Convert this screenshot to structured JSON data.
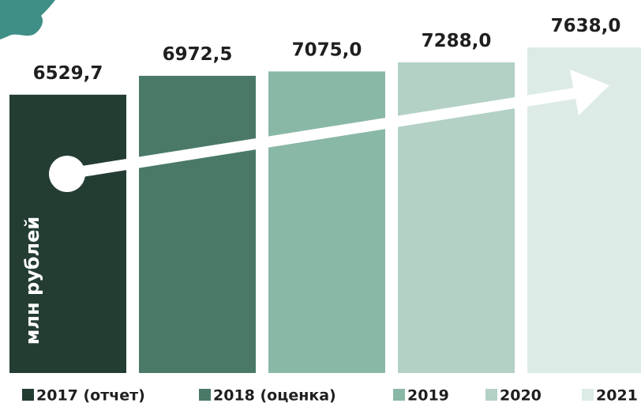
{
  "chart_data": {
    "type": "bar",
    "y_label": "млн рублей",
    "categories": [
      "2017 (отчет)",
      "2018 (оценка)",
      "2019",
      "2020",
      "2021"
    ],
    "values": [
      6529.7,
      6972.5,
      7075.0,
      7288.0,
      7638.0
    ],
    "value_labels": [
      "6529,7",
      "6972,5",
      "7075,0",
      "7288,0",
      "7638,0"
    ],
    "colors": [
      "#243d33",
      "#4a7a67",
      "#8ab8a6",
      "#b3d1c5",
      "#dcebe5"
    ],
    "ylim": [
      0,
      8000
    ]
  }
}
